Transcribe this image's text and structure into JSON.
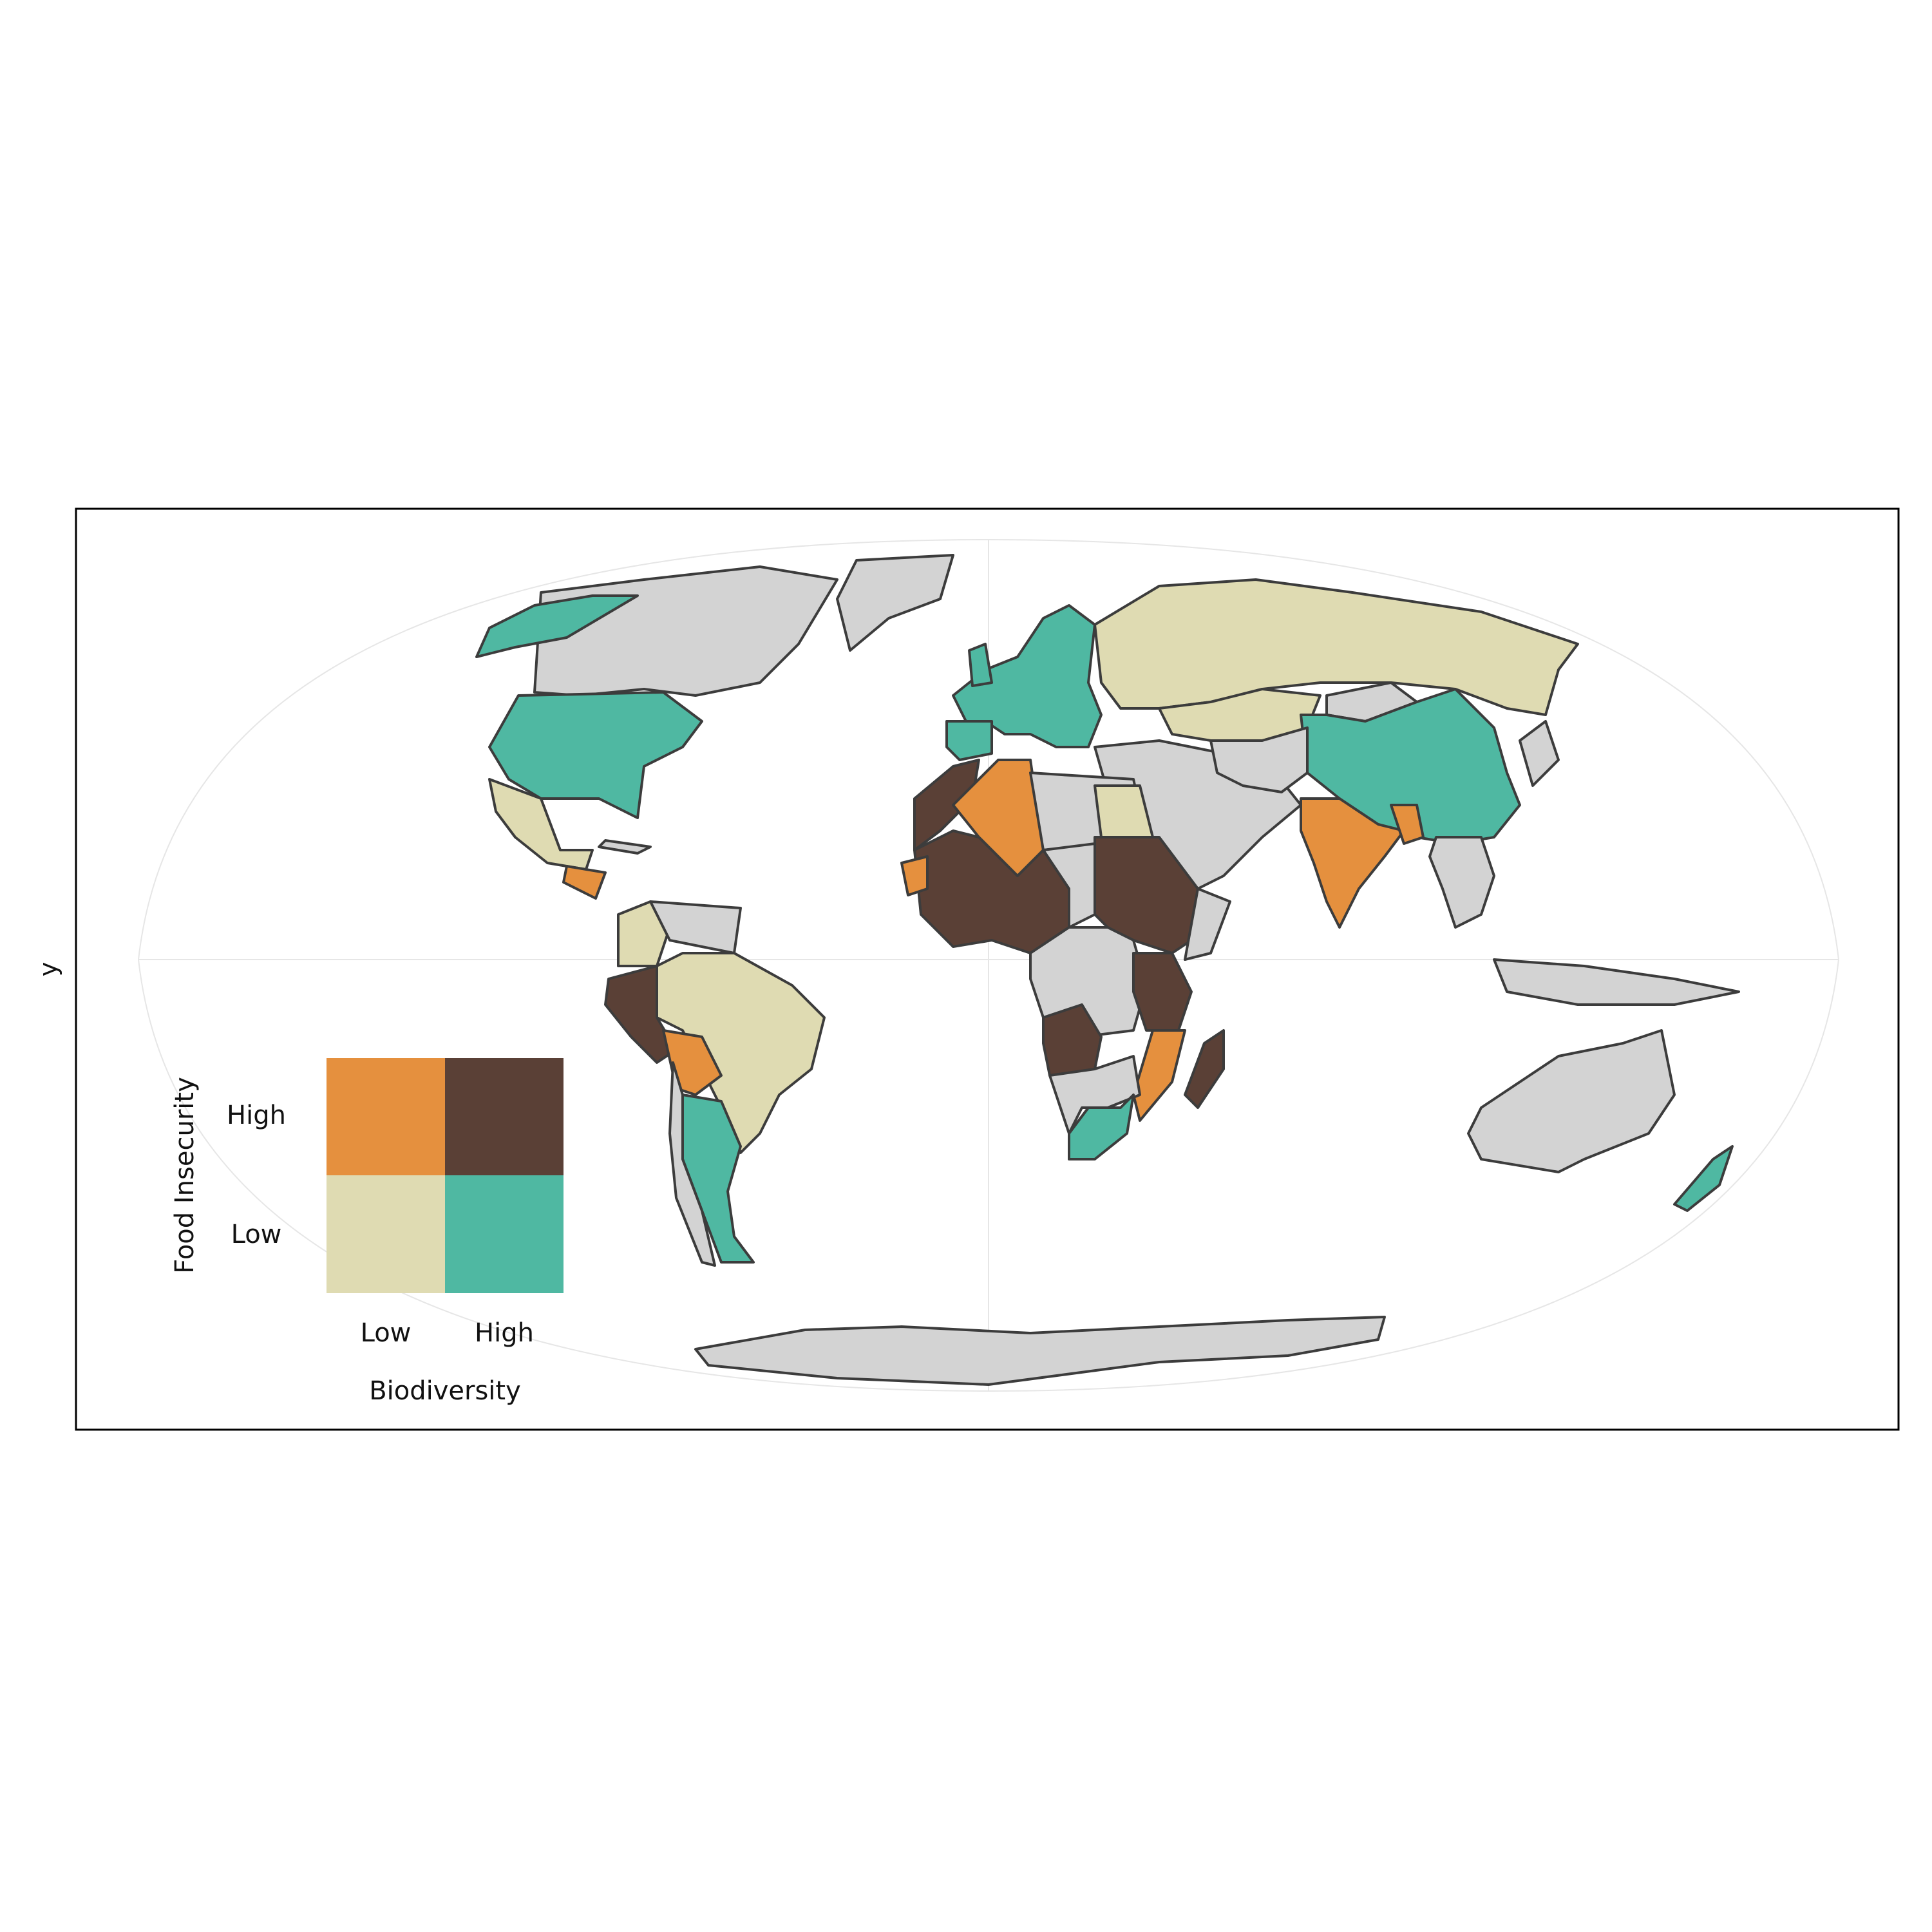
{
  "plot": {
    "y_axis_label": "y"
  },
  "legend": {
    "y_title": "Food Insecurity",
    "x_title": "Biodiversity",
    "y_levels": [
      "High",
      "Low"
    ],
    "x_levels": [
      "Low",
      "High"
    ],
    "cells": {
      "low_low": "#dfdbb2",
      "low_high": "#4fb8a2",
      "high_low": "#e5903e",
      "high_high": "#5a4036"
    }
  },
  "colors": {
    "no_data": "#d3d3d3",
    "border": "#3c3c3c",
    "frame": "#000000",
    "graticule": "#e6e6e6"
  },
  "map_data": {
    "projection": "robinson-like",
    "classes": {
      "low_food_insecurity_low_biodiversity": [
        "Russia",
        "Kazakhstan",
        "Mexico",
        "Brazil",
        "Egypt",
        "Colombia"
      ],
      "low_food_insecurity_high_biodiversity": [
        "Alaska (USA)",
        "United States",
        "China",
        "Europe",
        "Argentina",
        "South Africa",
        "New Zealand"
      ],
      "high_food_insecurity_low_biodiversity": [
        "Algeria",
        "India",
        "Bolivia",
        "Mozambique",
        "Honduras",
        "Myanmar",
        "Senegal"
      ],
      "high_food_insecurity_high_biodiversity": [
        "Morocco",
        "Mali",
        "Niger",
        "Sudan",
        "Ethiopia",
        "Tanzania",
        "Angola",
        "Peru",
        "Madagascar",
        "Nigeria"
      ],
      "no_data": [
        "Canada",
        "Greenland",
        "Australia",
        "Antarctica",
        "Middle East",
        "Central Asia",
        "Southeast Asia"
      ]
    }
  }
}
